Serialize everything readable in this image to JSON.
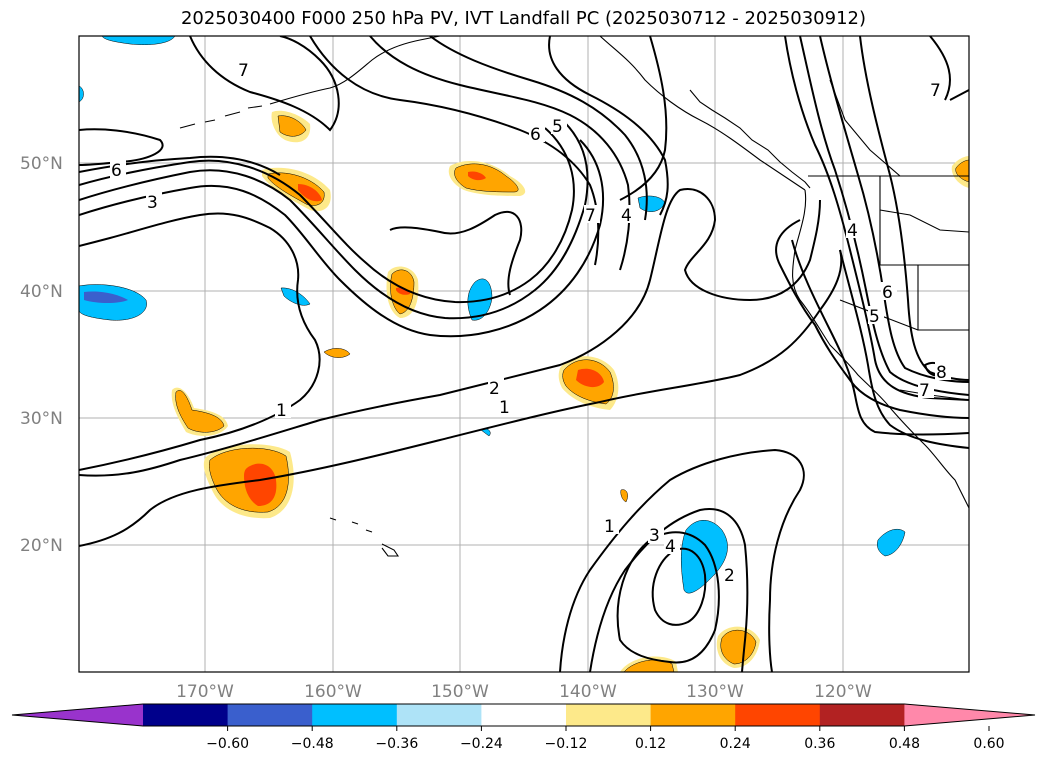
{
  "title": "2025030400 F000 250 hPa PV, IVT Landfall PC (2025030712 - 2025030912)",
  "lat_labels": [
    "50°N",
    "40°N",
    "30°N",
    "20°N"
  ],
  "lon_labels": [
    "170°W",
    "160°W",
    "150°W",
    "140°W",
    "130°W",
    "120°W"
  ],
  "colorbar": {
    "ticks": [
      "−0.60",
      "−0.48",
      "−0.36",
      "−0.24",
      "−0.12",
      "0.12",
      "0.24",
      "0.36",
      "0.48",
      "0.60"
    ],
    "colors": [
      "#9933cc",
      "#00008b",
      "#3a5fcd",
      "#00bfff",
      "#aee3f7",
      "#ffffff",
      "#fde98a",
      "#ffa500",
      "#ff4500",
      "#b22222",
      "#ff88aa"
    ]
  },
  "contour_labels": [
    "1",
    "1",
    "2",
    "3",
    "6",
    "6",
    "5",
    "7",
    "7",
    "4",
    "4",
    "5",
    "6",
    "7",
    "7",
    "8",
    "1",
    "2",
    "3",
    "4"
  ]
}
